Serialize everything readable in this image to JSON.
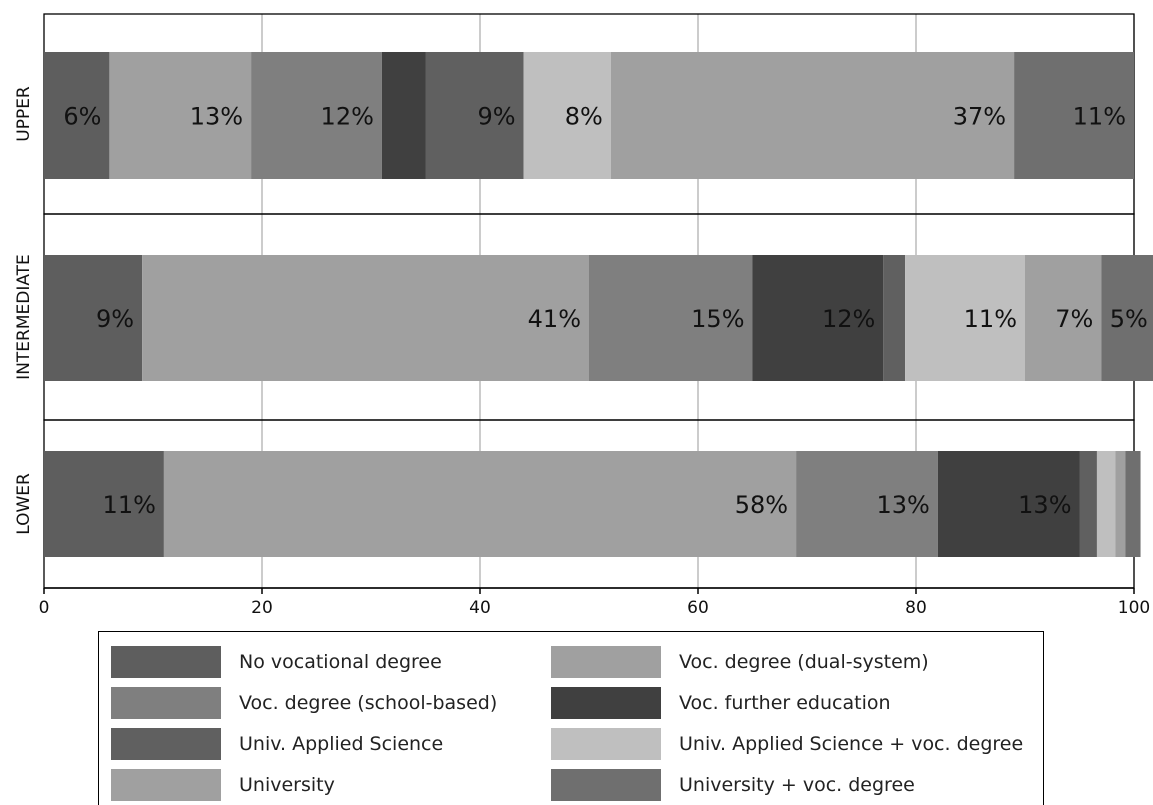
{
  "chart_data": {
    "type": "bar",
    "orientation": "horizontal",
    "stacked": true,
    "xlim": [
      0,
      100
    ],
    "x_ticks": [
      "0",
      "20",
      "40",
      "60",
      "80",
      "100"
    ],
    "grid": true,
    "categories": [
      "UPPER",
      "INTERMEDIATE",
      "LOWER"
    ],
    "series": [
      {
        "name": "No vocational degree",
        "color": "#5e5e5e",
        "values": [
          6,
          9,
          11
        ],
        "labels": [
          "6%",
          "9%",
          "11%"
        ]
      },
      {
        "name": "Voc. degree (dual-system)",
        "color": "#a0a0a0",
        "values": [
          13,
          41,
          58
        ],
        "labels": [
          "13%",
          "41%",
          "58%"
        ]
      },
      {
        "name": "Voc. degree (school-based)",
        "color": "#7f7f7f",
        "values": [
          12,
          15,
          13
        ],
        "labels": [
          "12%",
          "15%",
          "13%"
        ]
      },
      {
        "name": "Voc. further education",
        "color": "#404040",
        "values": [
          4,
          12,
          13
        ],
        "labels": [
          "",
          "12%",
          "13%"
        ]
      },
      {
        "name": "Univ. Applied Science",
        "color": "#606060",
        "values": [
          9,
          2,
          1.6
        ],
        "labels": [
          "9%",
          "",
          ""
        ]
      },
      {
        "name": "Univ. Applied Science + voc. degree",
        "color": "#bfbfbf",
        "values": [
          8,
          11,
          1.7
        ],
        "labels": [
          "8%",
          "11%",
          ""
        ]
      },
      {
        "name": "University",
        "color": "#a0a0a0",
        "values": [
          37,
          7,
          0.9
        ],
        "labels": [
          "37%",
          "7%",
          ""
        ]
      },
      {
        "name": "University + voc. degree",
        "color": "#6f6f6f",
        "values": [
          11,
          5,
          1.4
        ],
        "labels": [
          "11%",
          "5%",
          ""
        ]
      }
    ]
  }
}
